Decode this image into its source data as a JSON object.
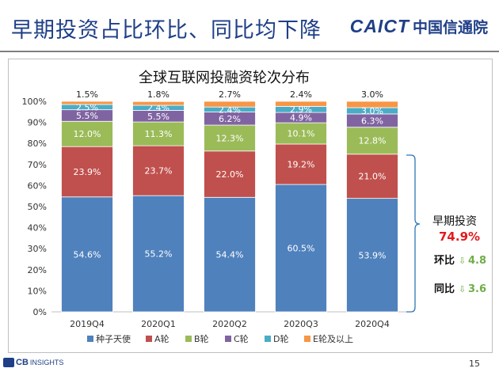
{
  "slide_title": "早期投资占比环比、同比均下降",
  "logo": {
    "en": "CAICT",
    "cn": "中国信通院"
  },
  "footer": {
    "source_logo_bold": "CB",
    "source_logo_rest": "INSIGHTS",
    "page_number": "15"
  },
  "chart_data": {
    "type": "bar",
    "stacked": true,
    "percent_stacked": true,
    "title": "全球互联网投融资轮次分布",
    "categories": [
      "2019Q4",
      "2020Q1",
      "2020Q2",
      "2020Q3",
      "2020Q4"
    ],
    "ylim": [
      0,
      100
    ],
    "yticks": [
      "0%",
      "10%",
      "20%",
      "30%",
      "40%",
      "50%",
      "60%",
      "70%",
      "80%",
      "90%",
      "100%"
    ],
    "series": [
      {
        "name": "种子天使",
        "color": "#4f81bd",
        "values": [
          54.6,
          55.2,
          54.4,
          60.5,
          53.9
        ],
        "labels": [
          "54.6%",
          "55.2%",
          "54.4%",
          "60.5%",
          "53.9%"
        ],
        "label_position": "inside"
      },
      {
        "name": "A轮",
        "color": "#c0504d",
        "values": [
          23.9,
          23.7,
          22.0,
          19.2,
          21.0
        ],
        "labels": [
          "23.9%",
          "23.7%",
          "22.0%",
          "19.2%",
          "21.0%"
        ],
        "label_position": "inside"
      },
      {
        "name": "B轮",
        "color": "#9bbb59",
        "values": [
          12.0,
          11.3,
          12.3,
          10.1,
          12.8
        ],
        "labels": [
          "12.0%",
          "11.3%",
          "12.3%",
          "10.1%",
          "12.8%"
        ],
        "label_position": "inside"
      },
      {
        "name": "C轮",
        "color": "#8064a2",
        "values": [
          5.5,
          5.5,
          6.2,
          4.9,
          6.3
        ],
        "labels": [
          "5.5%",
          "5.5%",
          "6.2%",
          "4.9%",
          "6.3%"
        ],
        "label_position": "inside"
      },
      {
        "name": "D轮",
        "color": "#4bacc6",
        "values": [
          2.5,
          2.4,
          2.4,
          2.9,
          3.0
        ],
        "labels": [
          "2.5%",
          "2.4%",
          "2.4%",
          "2.9%",
          "3.0%"
        ],
        "label_position": "inside"
      },
      {
        "name": "E轮及以上",
        "color": "#f79646",
        "values": [
          1.5,
          1.8,
          2.7,
          2.4,
          3.0
        ],
        "labels": [
          "1.5%",
          "1.8%",
          "2.7%",
          "2.4%",
          "3.0%"
        ],
        "label_position": "above"
      }
    ],
    "legend_position": "bottom",
    "grid": false,
    "annotation": {
      "label": "早期投资",
      "value": "74.9%",
      "qoq_label": "环比",
      "qoq_value": "4.8",
      "yoy_label": "同比",
      "yoy_value": "3.6",
      "accent": "#e31a1c",
      "down_color": "#70ad47"
    }
  }
}
